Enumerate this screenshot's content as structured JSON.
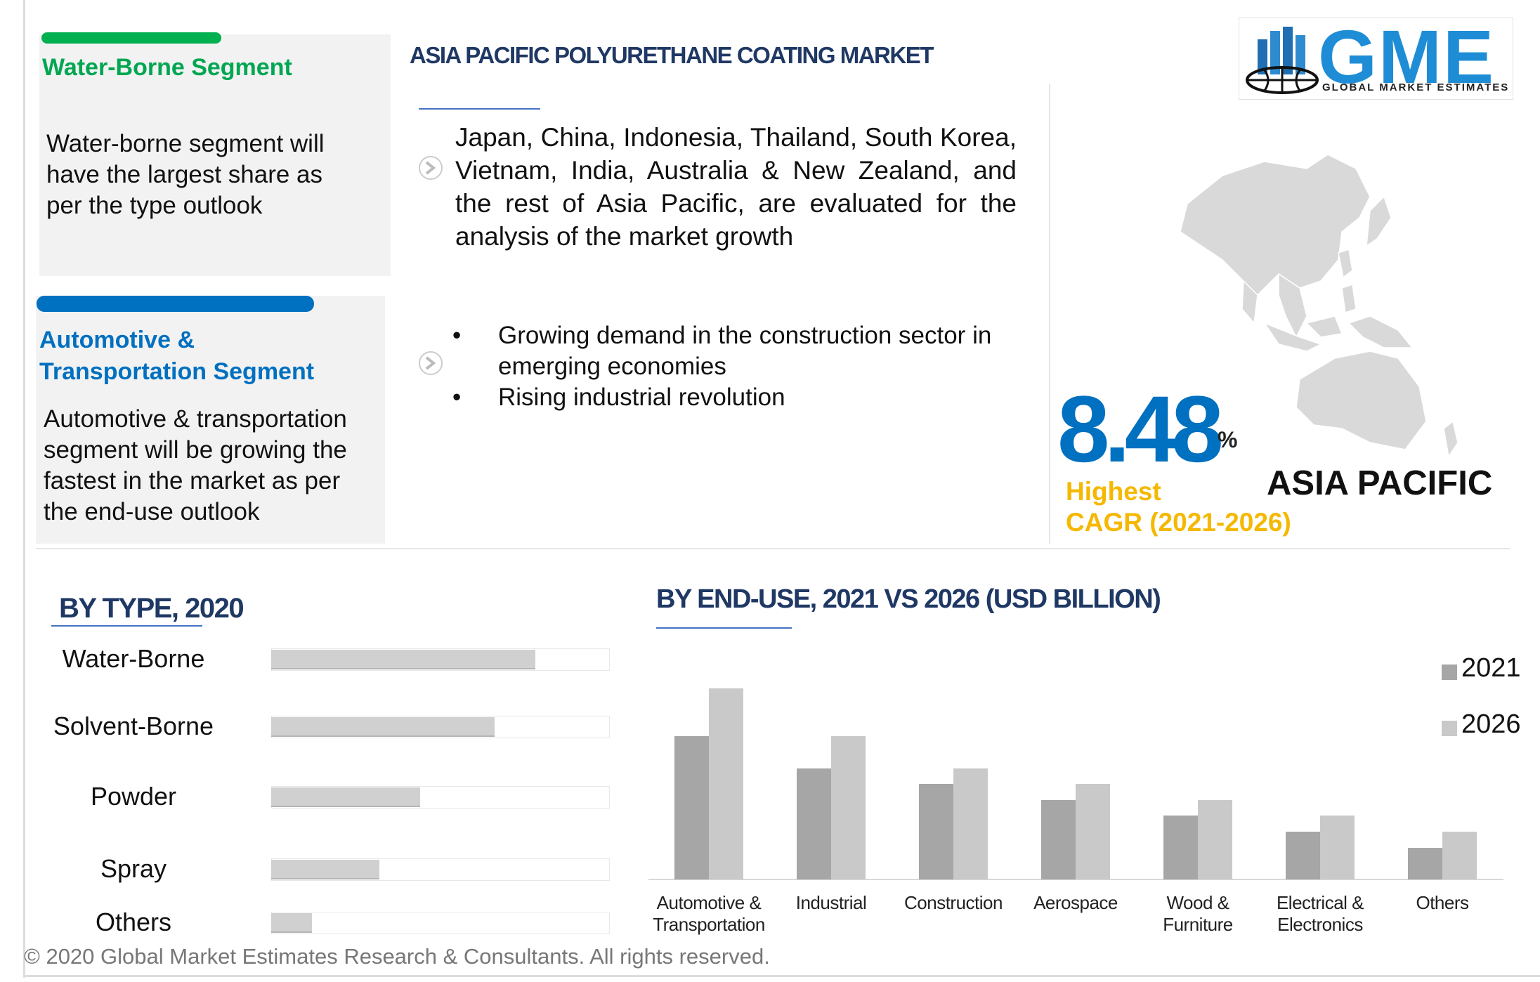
{
  "header": {
    "title": "ASIA PACIFIC POLYURETHANE COATING  MARKET"
  },
  "logo": {
    "text": "GME",
    "tagline": "GLOBAL MARKET ESTIMATES"
  },
  "panels": [
    {
      "title": "Water-Borne Segment",
      "text": "Water-borne segment will have the largest share as per the type outlook"
    },
    {
      "title": "Automotive &\nTransportation Segment",
      "text": "Automotive & transportation segment will be growing the fastest in the market as per the end-use outlook"
    }
  ],
  "description": "Japan, China, Indonesia, Thailand, South Korea, Vietnam, India, Australia & New Zealand, and the rest of Asia Pacific, are evaluated for the analysis of the market growth",
  "bullets": [
    "Growing demand in the construction sector in emerging economies",
    "Rising industrial revolution"
  ],
  "highlight": {
    "value": 8.48,
    "unit": "%",
    "label": "Highest\nCAGR (2021-2026)",
    "region": "ASIA PACIFIC"
  },
  "chart_data": [
    {
      "type": "hbar",
      "title": "BY TYPE, 2020",
      "categories": [
        "Water-Borne",
        "Solvent-Borne",
        "Powder",
        "Spray",
        "Others"
      ],
      "values": [
        78,
        66,
        44,
        32,
        12
      ],
      "xlim": [
        0,
        100
      ],
      "color": "#d0d0d0"
    },
    {
      "type": "bar",
      "title": "BY END-USE, 2021 VS 2026 (USD BILLION)",
      "categories": [
        "Automotive &\nTransportation",
        "Industrial",
        "Construction",
        "Aerospace",
        "Wood &\nFurniture",
        "Electrical &\nElectronics",
        "Others"
      ],
      "series": [
        {
          "name": "2021",
          "color": "#a6a6a6",
          "values": [
            9,
            7,
            6,
            5,
            4,
            3,
            2
          ]
        },
        {
          "name": "2026",
          "color": "#c9c9c9",
          "values": [
            12,
            9,
            7,
            6,
            5,
            4,
            3
          ]
        }
      ],
      "ylim": [
        0,
        14
      ],
      "legend": "right"
    }
  ],
  "footer": "© 2020 Global Market Estimates Research & Consultants. All rights reserved."
}
